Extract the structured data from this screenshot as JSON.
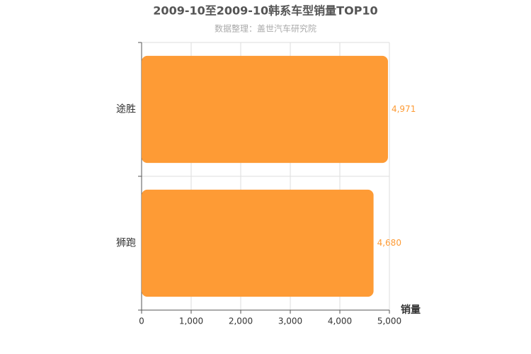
{
  "chart_data": {
    "type": "bar",
    "orientation": "horizontal",
    "title": "2009-10至2009-10韩系车型销量TOP10",
    "subtitle": "数据整理：盖世汽车研究院",
    "xlabel": "销量",
    "categories": [
      "途胜",
      "狮跑"
    ],
    "values": [
      4971,
      4680
    ],
    "value_labels": [
      "4,971",
      "4,680"
    ],
    "color": "#fe9b35",
    "xlim": [
      0,
      5000
    ],
    "xticks": [
      0,
      {
        "value": 1000,
        "label": "1,000"
      },
      {
        "value": 2000,
        "label": "2,000"
      },
      {
        "value": 3000,
        "label": "3,000"
      },
      {
        "value": 4000,
        "label": "4,000"
      },
      {
        "value": 5000,
        "label": "5,000"
      }
    ],
    "grid": true
  }
}
